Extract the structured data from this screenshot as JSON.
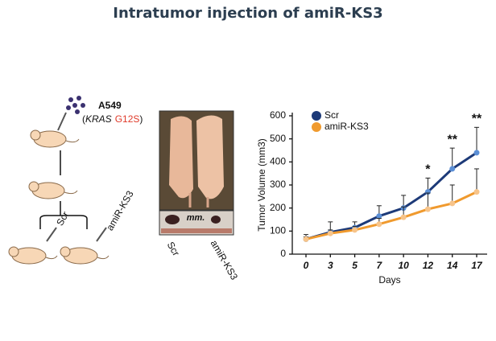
{
  "title": "Intratumor injection of amiR-KS3",
  "diagram": {
    "cell_line": "A549",
    "genotype_parts": [
      "(",
      "KRAS",
      "G12S",
      ")"
    ],
    "arm_left": "Scr",
    "arm_right": "amiR-KS3"
  },
  "photo": {
    "scale_label": "mm.",
    "label_left": "Scr",
    "label_right": "amiR-KS3"
  },
  "chart_data": {
    "type": "line",
    "xlabel": "Days",
    "ylabel": "Tumor Volume (mm3)",
    "categories": [
      "0",
      "3",
      "5",
      "7",
      "10",
      "12",
      "14",
      "17"
    ],
    "series": [
      {
        "name": "Scr",
        "color": "#1d3a78",
        "marker_color": "#5b8fd6",
        "values": [
          65,
          95,
          115,
          165,
          200,
          270,
          370,
          440
        ],
        "errors": [
          20,
          45,
          25,
          45,
          55,
          60,
          90,
          110
        ]
      },
      {
        "name": "amiR-KS3",
        "color": "#f09a2e",
        "marker_color": "#f7c48a",
        "values": [
          65,
          90,
          105,
          130,
          160,
          195,
          220,
          270
        ],
        "errors": [
          10,
          15,
          15,
          25,
          45,
          70,
          80,
          100
        ]
      }
    ],
    "annotations": [
      {
        "text": "*",
        "x": "12"
      },
      {
        "text": "**",
        "x": "14"
      },
      {
        "text": "**",
        "x": "17"
      }
    ],
    "ylim": [
      0,
      600
    ],
    "yticks": [
      0,
      100,
      200,
      300,
      400,
      500,
      600
    ],
    "legend": "upper left"
  }
}
